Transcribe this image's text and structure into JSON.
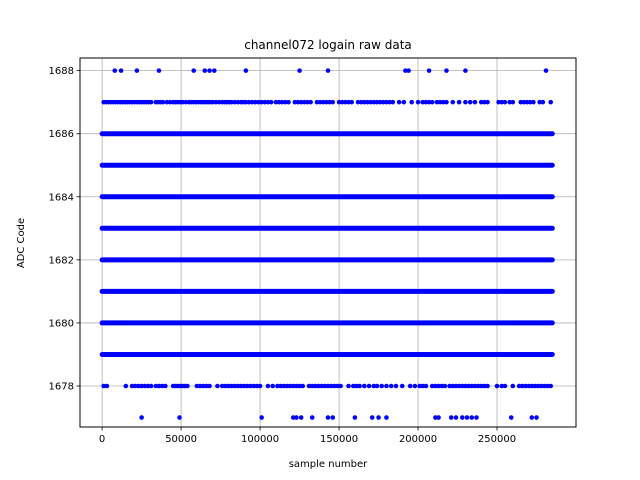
{
  "chart_data": {
    "type": "scatter",
    "title": "channel072 logain raw data",
    "xlabel": "sample number",
    "ylabel": "ADC Code",
    "xlim": [
      -14000,
      300000
    ],
    "ylim": [
      1676.7,
      1688.4
    ],
    "xticks": [
      0,
      50000,
      100000,
      150000,
      200000,
      250000
    ],
    "xtick_labels": [
      "0",
      "50000",
      "100000",
      "150000",
      "200000",
      "250000"
    ],
    "yticks": [
      1678,
      1680,
      1682,
      1684,
      1686,
      1688
    ],
    "ytick_labels": [
      "1678",
      "1680",
      "1682",
      "1684",
      "1686",
      "1688"
    ],
    "grid": true,
    "marker_color": "#0000ff",
    "dense_rows": {
      "y": [
        1679,
        1680,
        1681,
        1682,
        1683,
        1684,
        1685,
        1686
      ],
      "x_range": [
        0,
        285000
      ]
    },
    "sparse_points": {
      "y1688_x": [
        8000,
        12000,
        22000,
        36000,
        58000,
        65000,
        68000,
        71000,
        91000,
        125000,
        143000,
        192000,
        194000,
        207000,
        218000,
        230000,
        281000
      ],
      "y1677_x": [
        25000,
        49000,
        101000,
        121000,
        123000,
        126000,
        133000,
        143000,
        146000,
        160000,
        171000,
        175000,
        180000,
        211000,
        213000,
        221000,
        224000,
        228000,
        231000,
        234000,
        237000,
        259000,
        272000,
        275000
      ],
      "y1687_x": [
        1000,
        2500,
        4000,
        5500,
        7000,
        8500,
        10000,
        11500,
        13000,
        14500,
        16000,
        17500,
        19000,
        20500,
        22000,
        23500,
        25000,
        26500,
        28000,
        29500,
        31000,
        34000,
        35500,
        37000,
        38500,
        41000,
        43000,
        45000,
        46500,
        48000,
        49500,
        51000,
        53000,
        55000,
        56500,
        58000,
        59500,
        61000,
        62500,
        64000,
        65500,
        67000,
        68500,
        70000,
        72000,
        74000,
        76000,
        77500,
        79000,
        80500,
        82000,
        84000,
        86000,
        88000,
        89500,
        91000,
        93000,
        95000,
        97000,
        99000,
        101000,
        103000,
        105000,
        107000,
        110000,
        112000,
        114000,
        116000,
        118000,
        122000,
        124000,
        126000,
        128000,
        130000,
        132000,
        136000,
        138000,
        140000,
        142000,
        144000,
        146000,
        150000,
        152000,
        154000,
        156000,
        158000,
        162000,
        164000,
        166000,
        168000,
        170000,
        172000,
        174000,
        176000,
        178000,
        180000,
        182000,
        184000,
        188000,
        191000,
        196000,
        200000,
        203000,
        205000,
        207000,
        209000,
        212000,
        214000,
        216000,
        218000,
        222000,
        226000,
        230000,
        233000,
        236000,
        240000,
        242000,
        244000,
        251000,
        253000,
        255000,
        258000,
        260000,
        265000,
        267000,
        269000,
        271000,
        273000,
        277000,
        279000,
        284000
      ],
      "y1678_x": [
        1000,
        3000,
        15000,
        19000,
        21000,
        23000,
        25000,
        27000,
        29000,
        31000,
        34000,
        36000,
        38000,
        40000,
        45000,
        46500,
        48000,
        49500,
        51000,
        52500,
        54000,
        60000,
        62000,
        64000,
        66000,
        68000,
        73000,
        76000,
        78000,
        80000,
        82000,
        84000,
        86000,
        88000,
        90000,
        92000,
        94000,
        96000,
        98000,
        100000,
        105000,
        108000,
        111000,
        113000,
        115000,
        117000,
        119000,
        121000,
        123000,
        125000,
        127000,
        131000,
        133000,
        135000,
        137000,
        139000,
        141000,
        143000,
        145000,
        147000,
        149000,
        151000,
        156000,
        159000,
        161000,
        163000,
        166000,
        169000,
        172000,
        174000,
        177000,
        180000,
        183000,
        186000,
        190000,
        195000,
        198000,
        201000,
        203000,
        205000,
        209000,
        211000,
        213000,
        215000,
        217000,
        220000,
        222000,
        224000,
        226000,
        228000,
        230000,
        232000,
        234000,
        236000,
        238000,
        240000,
        242000,
        244000,
        250000,
        253000,
        255000,
        260000,
        264000,
        266000,
        268000,
        270000,
        272000,
        274000,
        276000,
        278000,
        280000,
        282000,
        284000
      ]
    }
  }
}
